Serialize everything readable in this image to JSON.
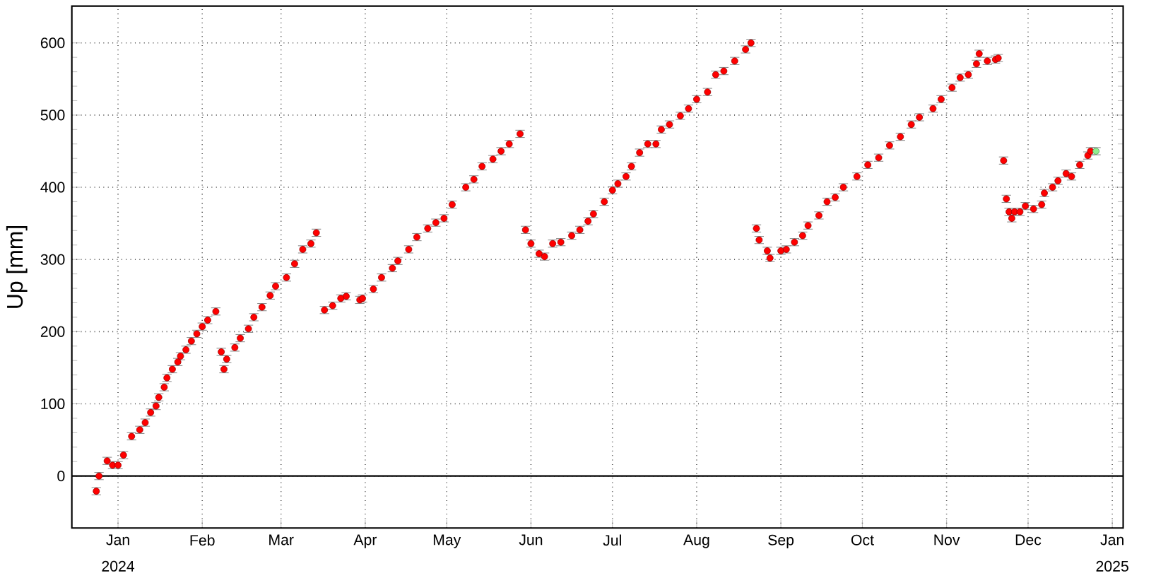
{
  "chart_data": {
    "type": "scatter",
    "ylabel": "Up [mm]",
    "marker": "circle",
    "grid": true,
    "xlim": [
      "2023-12-15",
      "2025-01-05"
    ],
    "ylim": [
      -72,
      651
    ],
    "xticks": [
      {
        "value": "2024-01-01",
        "label": "Jan"
      },
      {
        "value": "2024-02-01",
        "label": "Feb"
      },
      {
        "value": "2024-03-01",
        "label": "Mar"
      },
      {
        "value": "2024-04-01",
        "label": "Apr"
      },
      {
        "value": "2024-05-01",
        "label": "May"
      },
      {
        "value": "2024-06-01",
        "label": "Jun"
      },
      {
        "value": "2024-07-01",
        "label": "Jul"
      },
      {
        "value": "2024-08-01",
        "label": "Aug"
      },
      {
        "value": "2024-09-01",
        "label": "Sep"
      },
      {
        "value": "2024-10-01",
        "label": "Oct"
      },
      {
        "value": "2024-11-01",
        "label": "Nov"
      },
      {
        "value": "2024-12-01",
        "label": "Dec"
      },
      {
        "value": "2025-01-01",
        "label": "Jan"
      }
    ],
    "yticks": [
      0,
      100,
      200,
      300,
      400,
      500,
      600
    ],
    "ref_lines": [
      {
        "axis": "y",
        "value": 0,
        "color": "#000000"
      }
    ],
    "annotations": [
      "2024",
      "2025"
    ],
    "series": [
      {
        "color": "#ff0000",
        "x": [
          "2023-12-24",
          "2023-12-25",
          "2023-12-28",
          "2023-12-30",
          "2024-01-01",
          "2024-01-03",
          "2024-01-06",
          "2024-01-09",
          "2024-01-11",
          "2024-01-13",
          "2024-01-15",
          "2024-01-16",
          "2024-01-18",
          "2024-01-19",
          "2024-01-21",
          "2024-01-23",
          "2024-01-24",
          "2024-01-26",
          "2024-01-28",
          "2024-01-30",
          "2024-02-01",
          "2024-02-03",
          "2024-02-06",
          "2024-02-08",
          "2024-02-09",
          "2024-02-10",
          "2024-02-13",
          "2024-02-15",
          "2024-02-18",
          "2024-02-20",
          "2024-02-23",
          "2024-02-26",
          "2024-02-28",
          "2024-03-03",
          "2024-03-06",
          "2024-03-09",
          "2024-03-12",
          "2024-03-14",
          "2024-03-17",
          "2024-03-20",
          "2024-03-23",
          "2024-03-25",
          "2024-03-30",
          "2024-03-31",
          "2024-04-04",
          "2024-04-07",
          "2024-04-11",
          "2024-04-13",
          "2024-04-17",
          "2024-04-20",
          "2024-04-24",
          "2024-04-27",
          "2024-04-30",
          "2024-05-03",
          "2024-05-08",
          "2024-05-11",
          "2024-05-14",
          "2024-05-18",
          "2024-05-21",
          "2024-05-24",
          "2024-05-28",
          "2024-05-30",
          "2024-06-01",
          "2024-06-04",
          "2024-06-06",
          "2024-06-09",
          "2024-06-12",
          "2024-06-16",
          "2024-06-19",
          "2024-06-22",
          "2024-06-24",
          "2024-06-28",
          "2024-07-01",
          "2024-07-03",
          "2024-07-06",
          "2024-07-08",
          "2024-07-11",
          "2024-07-14",
          "2024-07-17",
          "2024-07-19",
          "2024-07-22",
          "2024-07-26",
          "2024-07-29",
          "2024-08-01",
          "2024-08-05",
          "2024-08-08",
          "2024-08-11",
          "2024-08-15",
          "2024-08-19",
          "2024-08-21",
          "2024-08-23",
          "2024-08-24",
          "2024-08-27",
          "2024-08-28",
          "2024-09-01",
          "2024-09-03",
          "2024-09-06",
          "2024-09-09",
          "2024-09-11",
          "2024-09-15",
          "2024-09-18",
          "2024-09-21",
          "2024-09-24",
          "2024-09-29",
          "2024-10-03",
          "2024-10-07",
          "2024-10-11",
          "2024-10-15",
          "2024-10-19",
          "2024-10-22",
          "2024-10-27",
          "2024-10-30",
          "2024-11-03",
          "2024-11-06",
          "2024-11-09",
          "2024-11-12",
          "2024-11-13",
          "2024-11-16",
          "2024-11-19",
          "2024-11-20",
          "2024-11-22",
          "2024-11-23",
          "2024-11-24",
          "2024-11-25",
          "2024-11-26",
          "2024-11-28",
          "2024-11-30",
          "2024-12-03",
          "2024-12-06",
          "2024-12-07",
          "2024-12-10",
          "2024-12-12",
          "2024-12-15",
          "2024-12-17",
          "2024-12-20",
          "2024-12-23",
          "2024-12-24"
        ],
        "values": [
          -21,
          0,
          21,
          15,
          15,
          29,
          55,
          64,
          74,
          88,
          97,
          109,
          123,
          136,
          148,
          158,
          166,
          175,
          187,
          197,
          207,
          216,
          228,
          172,
          148,
          162,
          178,
          191,
          204,
          220,
          234,
          250,
          263,
          275,
          294,
          314,
          322,
          337,
          230,
          236,
          246,
          249,
          244,
          246,
          259,
          275,
          288,
          298,
          314,
          331,
          343,
          351,
          357,
          376,
          400,
          411,
          429,
          439,
          450,
          460,
          474,
          341,
          322,
          308,
          304,
          322,
          324,
          333,
          341,
          353,
          363,
          380,
          396,
          405,
          415,
          429,
          448,
          460,
          460,
          480,
          487,
          499,
          509,
          522,
          532,
          556,
          561,
          575,
          591,
          600,
          343,
          327,
          312,
          302,
          312,
          314,
          324,
          333,
          347,
          361,
          380,
          386,
          400,
          415,
          431,
          441,
          458,
          470,
          487,
          497,
          509,
          522,
          538,
          552,
          556,
          571,
          585,
          575,
          577,
          579,
          437,
          384,
          366,
          357,
          366,
          366,
          374,
          370,
          376,
          392,
          400,
          409,
          419,
          415,
          431,
          444,
          450
        ],
        "errors": [
          5,
          5,
          5,
          5,
          5,
          5,
          5,
          5,
          5,
          5,
          5,
          5,
          5,
          5,
          5,
          5,
          5,
          5,
          5,
          5,
          5,
          5,
          5,
          5,
          5,
          5,
          5,
          5,
          5,
          5,
          5,
          5,
          5,
          5,
          5,
          5,
          5,
          5,
          5,
          5,
          5,
          5,
          5,
          5,
          5,
          5,
          5,
          5,
          5,
          5,
          5,
          5,
          5,
          5,
          5,
          5,
          5,
          5,
          5,
          5,
          5,
          5,
          5,
          5,
          5,
          5,
          5,
          5,
          5,
          5,
          5,
          5,
          5,
          5,
          5,
          5,
          5,
          5,
          5,
          5,
          5,
          5,
          5,
          5,
          5,
          5,
          5,
          5,
          5,
          5,
          5,
          5,
          5,
          5,
          5,
          5,
          5,
          5,
          5,
          5,
          5,
          5,
          5,
          5,
          5,
          5,
          5,
          5,
          5,
          5,
          5,
          5,
          5,
          5,
          5,
          5,
          5,
          5,
          5,
          5,
          5,
          5,
          5,
          5,
          5,
          5,
          5,
          5,
          5,
          5,
          5,
          5,
          5,
          5,
          5,
          5,
          5
        ]
      },
      {
        "color": "#90ee90",
        "x": [
          "2024-12-26"
        ],
        "values": [
          450
        ],
        "errors": [
          5
        ]
      }
    ]
  }
}
